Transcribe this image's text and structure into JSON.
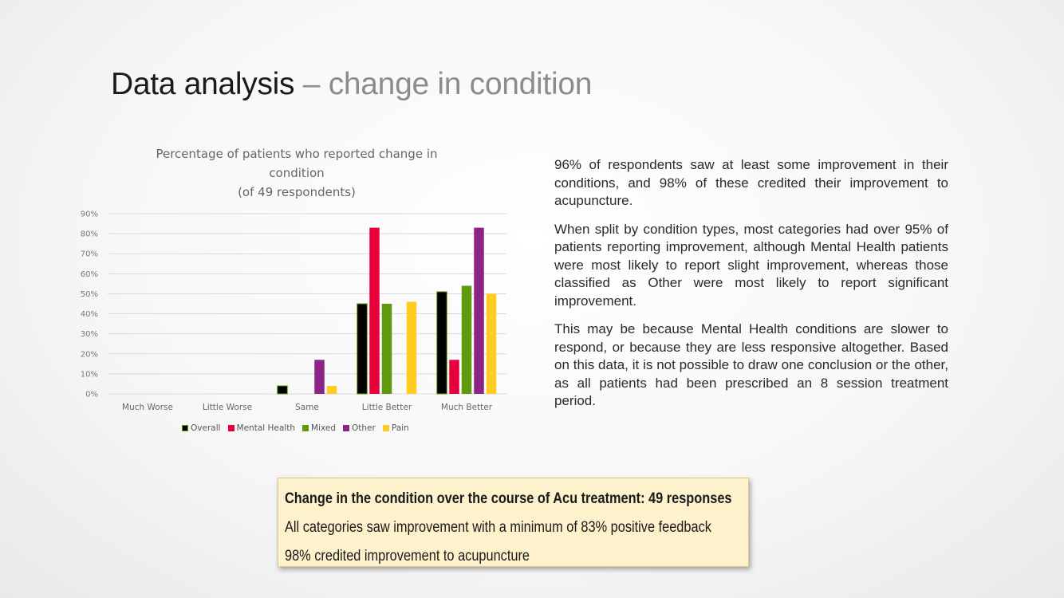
{
  "slide": {
    "title_main": "Data analysis",
    "title_dash": "–",
    "title_sub": "change in condition"
  },
  "chart_data": {
    "type": "bar",
    "title": [
      "Percentage of patients who reported change in",
      "condition",
      "(of 49 respondents)"
    ],
    "categories": [
      "Much Worse",
      "Little Worse",
      "Same",
      "Little Better",
      "Much Better"
    ],
    "series": [
      {
        "name": "Overall",
        "color": "#000000",
        "values": [
          0,
          0,
          4,
          45,
          51
        ]
      },
      {
        "name": "Mental Health",
        "color": "#e8003d",
        "values": [
          0,
          0,
          0,
          83,
          17
        ]
      },
      {
        "name": "Mixed",
        "color": "#5f9a0c",
        "values": [
          0,
          0,
          0,
          45,
          54
        ]
      },
      {
        "name": "Other",
        "color": "#8b2389",
        "values": [
          0,
          0,
          17,
          0,
          83
        ]
      },
      {
        "name": "Pain",
        "color": "#ffcc22",
        "values": [
          0,
          0,
          4,
          46,
          50
        ]
      }
    ],
    "yticks": [
      "0%",
      "10%",
      "20%",
      "30%",
      "40%",
      "50%",
      "60%",
      "70%",
      "80%",
      "90%"
    ],
    "ylim": [
      0,
      90
    ],
    "grid": true,
    "legend_position": "bottom"
  },
  "paragraphs": [
    "96% of respondents saw at least some improvement in their conditions, and 98% of these credited their improvement to acupuncture.",
    "When split by condition types, most categories had over 95% of patients reporting improvement, although Mental Health patients were most likely to report slight improvement, whereas those classified as Other were most likely to report significant improvement.",
    "This may be because Mental Health conditions are slower to respond, or because they are less responsive altogether. Based on this data, it is not possible to draw one conclusion or the other, as all patients had been prescribed an 8 session treatment period."
  ],
  "callout": {
    "heading": "Change in the condition over the course of Acu treatment: 49 responses",
    "line1": "All categories saw improvement with a minimum of 83% positive feedback",
    "line2": "98% credited improvement to acupuncture"
  }
}
